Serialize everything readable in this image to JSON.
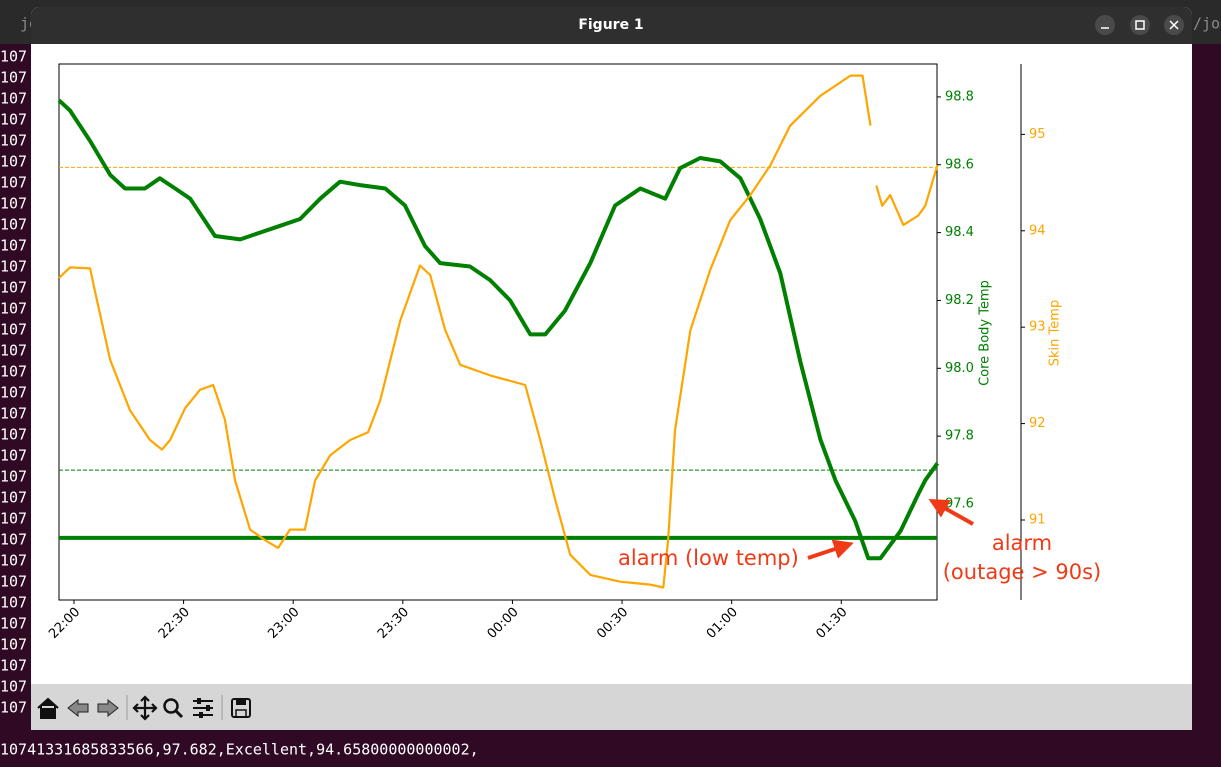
{
  "terminal": {
    "tab_left": "jo",
    "tab_right": "/jog",
    "left_fragments": [
      "107",
      "107",
      "107",
      "107",
      "107",
      "107",
      "107",
      "107",
      "107",
      "107",
      "107",
      "107",
      "107",
      "107",
      "107",
      "107",
      "107",
      "107",
      "107",
      "107",
      "107",
      "107",
      "107",
      "107",
      "107",
      "107",
      "107",
      "107",
      "107",
      "107",
      "107",
      "107"
    ],
    "bottom_line": "10741331685833566,97.682,Excellent,94.65800000000002,"
  },
  "window": {
    "title": "Figure 1"
  },
  "chart_data": {
    "type": "line",
    "xlim": [
      -4.1,
      236.2
    ],
    "xticks": [
      {
        "value": 0,
        "label": "22:00"
      },
      {
        "value": 30,
        "label": "22:30"
      },
      {
        "value": 60,
        "label": "23:00"
      },
      {
        "value": 90,
        "label": "23:30"
      },
      {
        "value": 120,
        "label": "00:00"
      },
      {
        "value": 150,
        "label": "00:30"
      },
      {
        "value": 180,
        "label": "01:00"
      },
      {
        "value": 210,
        "label": "01:30"
      }
    ],
    "ylabel": "Core Body Temp",
    "ylim": [
      97.317,
      98.897
    ],
    "yticks": [
      97.6,
      97.8,
      {
        "value": 98,
        "label": "98.0"
      },
      98.2,
      98.4,
      98.6,
      98.8
    ],
    "y_color": "#008000",
    "y2label": "Skin Temp",
    "y2lim": [
      90.17,
      95.73
    ],
    "y2ticks": [
      91,
      92,
      93,
      94,
      95
    ],
    "y2_color": "#ffa500",
    "series": [
      {
        "name": "Core Body Temp",
        "color": "#008000",
        "axis": "y",
        "x": [
          -4.1,
          -1.1,
          4.4,
          9.9,
          14.0,
          19.4,
          23.5,
          27.7,
          31.8,
          38.6,
          45.5,
          50.9,
          56.4,
          61.9,
          67.4,
          72.8,
          78.3,
          85.2,
          90.6,
          96.1,
          100.2,
          108.4,
          113.9,
          119.4,
          124.9,
          129.0,
          134.4,
          141.3,
          148.1,
          155.0,
          161.8,
          165.9,
          171.4,
          176.9,
          182.4,
          187.8,
          193.3,
          198.8,
          204.3,
          208.4,
          213.8,
          217.4,
          220.7,
          226.2,
          231.1,
          233.0,
          236.3
        ],
        "values": [
          98.79,
          98.76,
          98.67,
          98.57,
          98.53,
          98.53,
          98.56,
          98.53,
          98.5,
          98.39,
          98.38,
          98.4,
          98.42,
          98.44,
          98.5,
          98.55,
          98.54,
          98.53,
          98.48,
          98.36,
          98.31,
          98.3,
          98.26,
          98.2,
          98.1,
          98.1,
          98.17,
          98.31,
          98.48,
          98.53,
          98.5,
          98.59,
          98.62,
          98.61,
          98.56,
          98.44,
          98.28,
          98.02,
          97.79,
          97.67,
          97.55,
          97.44,
          97.44,
          97.52,
          97.63,
          97.67,
          97.72
        ]
      },
      {
        "name": "Skin Temp",
        "color": "#ffa500",
        "axis": "y2",
        "x": [
          -4.1,
          -1.1,
          4.4,
          5.7,
          9.9,
          15.3,
          20.8,
          24.1,
          26.3,
          30.4,
          34.5,
          38.1,
          41.3,
          44.1,
          48.2,
          52.3,
          55.9,
          59.1,
          63.2,
          66.0,
          70.1,
          75.6,
          80.5,
          83.8,
          89.3,
          94.7,
          97.5,
          101.6,
          105.7,
          113.9,
          123.5,
          127.6,
          131.7,
          135.8,
          141.3,
          149.5,
          157.7,
          161.3,
          162.6,
          164.5,
          168.7,
          174.1,
          179.6,
          185.1,
          190.6,
          196.0,
          204.3,
          212.5,
          215.8,
          218.0,
          218.8,
          219.6,
          221.2,
          223.4,
          227.0,
          231.1,
          233.0,
          236.3
        ],
        "values": [
          93.51,
          93.62,
          93.61,
          93.38,
          92.66,
          92.14,
          91.83,
          91.73,
          91.83,
          92.16,
          92.35,
          92.4,
          92.04,
          91.41,
          90.9,
          90.79,
          90.71,
          90.9,
          90.9,
          91.41,
          91.67,
          91.83,
          91.91,
          92.24,
          93.07,
          93.64,
          93.54,
          92.97,
          92.61,
          92.5,
          92.4,
          91.83,
          91.21,
          90.64,
          90.43,
          90.36,
          90.33,
          90.3,
          90.79,
          91.93,
          92.97,
          93.59,
          94.11,
          94.37,
          94.68,
          95.09,
          95.4,
          95.61,
          95.61,
          95.09,
          null,
          94.47,
          94.26,
          94.37,
          94.06,
          94.16,
          94.26,
          94.68
        ]
      }
    ],
    "reference_lines": [
      {
        "value": 94.658,
        "axis": "y2",
        "color": "#ffa500",
        "style": "dashed"
      },
      {
        "value": 97.7,
        "axis": "y",
        "color": "#008000",
        "style": "dashed"
      },
      {
        "value": 97.5,
        "axis": "y",
        "color": "#008000",
        "style": "solid"
      }
    ],
    "annotations": [
      "alarm (low temp)",
      "alarm",
      "(outage > 90s)"
    ]
  }
}
